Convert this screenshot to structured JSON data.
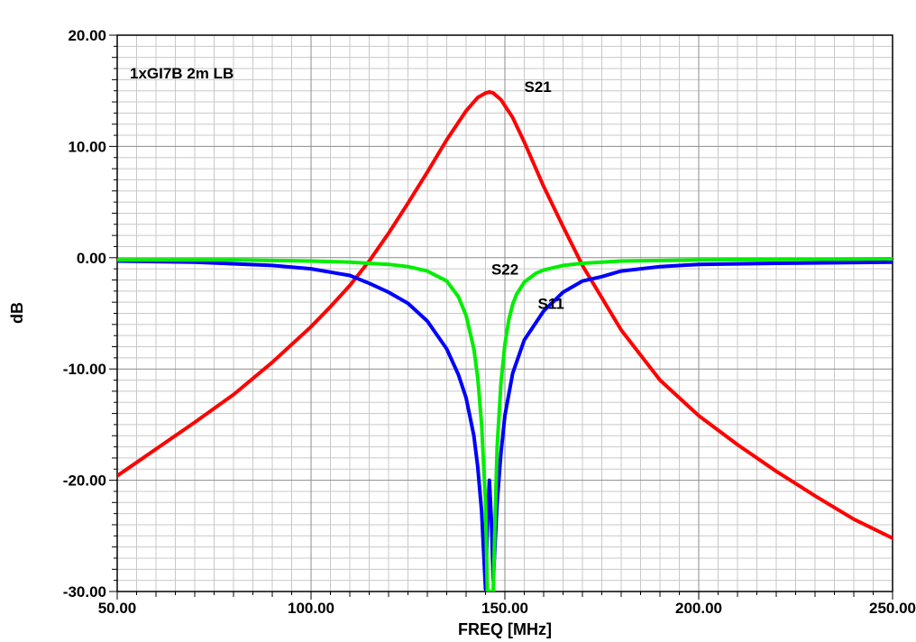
{
  "chart_data": {
    "type": "line",
    "title": "",
    "subtitle": "1xGI7B 2m LB",
    "xlabel": "FREQ [MHz]",
    "ylabel": "dB",
    "xlim": [
      50,
      250
    ],
    "ylim": [
      -30,
      20
    ],
    "x_ticks": [
      50,
      100,
      150,
      200,
      250
    ],
    "x_tick_labels": [
      "50.00",
      "100.00",
      "150.00",
      "200.00",
      "250.00"
    ],
    "y_ticks": [
      20,
      10,
      0,
      -10,
      -20,
      -30
    ],
    "y_tick_labels": [
      "20.00",
      "10.00",
      "0.00",
      "-10.00",
      "-20.00",
      "-30.00"
    ],
    "grid": true,
    "legend": "none",
    "series": [
      {
        "name": "S21",
        "color": "#ff0000",
        "x": [
          50,
          60,
          70,
          80,
          90,
          100,
          105,
          110,
          115,
          120,
          125,
          130,
          135,
          140,
          143,
          145,
          146,
          147,
          149,
          152,
          155,
          160,
          165,
          170,
          175,
          180,
          190,
          200,
          210,
          220,
          230,
          240,
          250
        ],
        "y": [
          -19.6,
          -17.2,
          -14.8,
          -12.3,
          -9.4,
          -6.2,
          -4.4,
          -2.5,
          -0.3,
          2.2,
          4.9,
          7.7,
          10.6,
          13.2,
          14.4,
          14.8,
          14.9,
          14.8,
          14.2,
          12.6,
          10.4,
          6.4,
          2.8,
          -0.7,
          -3.6,
          -6.5,
          -11.0,
          -14.2,
          -16.8,
          -19.2,
          -21.4,
          -23.5,
          -25.2
        ]
      },
      {
        "name": "S11",
        "color": "#0000ff",
        "x": [
          50,
          70,
          90,
          100,
          110,
          115,
          120,
          125,
          130,
          135,
          138,
          140,
          142,
          143,
          144,
          145,
          145.5,
          146,
          146.5,
          147,
          148,
          149,
          150,
          152,
          155,
          160,
          165,
          170,
          175,
          180,
          190,
          200,
          220,
          250
        ],
        "y": [
          -0.3,
          -0.4,
          -0.7,
          -1.0,
          -1.6,
          -2.3,
          -3.1,
          -4.1,
          -5.7,
          -8.2,
          -10.5,
          -12.6,
          -16.0,
          -18.8,
          -22.8,
          -29.8,
          -24.0,
          -20.0,
          -23.5,
          -29.0,
          -22.0,
          -17.5,
          -14.2,
          -10.4,
          -7.4,
          -4.8,
          -3.1,
          -2.1,
          -1.7,
          -1.2,
          -0.8,
          -0.6,
          -0.5,
          -0.4
        ]
      },
      {
        "name": "S22",
        "color": "#00ee00",
        "x": [
          50,
          80,
          100,
          110,
          120,
          125,
          130,
          135,
          138,
          140,
          142,
          143,
          144,
          145,
          145.5,
          146,
          146.5,
          147,
          147.5,
          148,
          149,
          150,
          151,
          152,
          153,
          155,
          158,
          160,
          165,
          170,
          175,
          180,
          200,
          250
        ],
        "y": [
          -0.2,
          -0.2,
          -0.3,
          -0.4,
          -0.6,
          -0.8,
          -1.2,
          -2.1,
          -3.5,
          -5.2,
          -8.2,
          -10.8,
          -15.0,
          -22.0,
          -30.0,
          -30.0,
          -30.0,
          -30.0,
          -23.0,
          -17.0,
          -11.2,
          -7.8,
          -5.6,
          -4.2,
          -3.3,
          -2.2,
          -1.4,
          -1.1,
          -0.7,
          -0.5,
          -0.4,
          -0.3,
          -0.2,
          -0.1
        ]
      }
    ],
    "annotations": [
      {
        "text": "S21",
        "x": 155,
        "y": 14.9
      },
      {
        "text": "S22",
        "x": 146.5,
        "y": -1.5
      },
      {
        "text": "S11",
        "x": 158.5,
        "y": -4.6
      }
    ]
  }
}
